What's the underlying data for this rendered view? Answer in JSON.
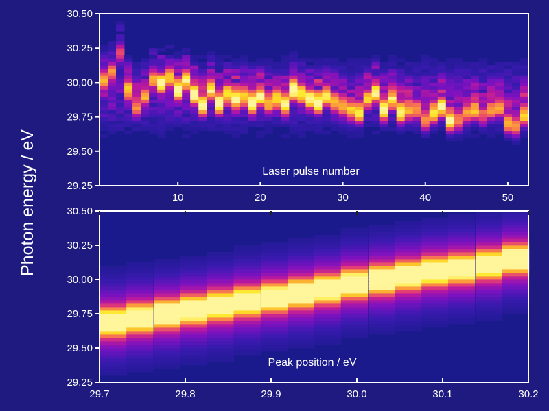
{
  "figure": {
    "ylabel": "Photon energy / eV"
  },
  "colors": {
    "background": "#1e1a80",
    "plot_bg": "#1a1a8c",
    "frame": "#ffffff",
    "text": "#ffffff"
  },
  "colormap": [
    "#1a1a8c",
    "#3a1ab0",
    "#7a12c0",
    "#b8189f",
    "#e43f74",
    "#f9804a",
    "#fcb82e",
    "#fde725",
    "#fff59a"
  ],
  "chart_data": [
    {
      "type": "heatmap",
      "panel": "top",
      "xlabel": "Laser pulse number",
      "x_ticks": [
        10,
        20,
        30,
        40,
        50
      ],
      "x_tick_labels": [
        "10",
        "20",
        "30",
        "40",
        "50"
      ],
      "xlim": [
        0.5,
        52.5
      ],
      "ylim": [
        29.25,
        30.5
      ],
      "y_ticks": [
        29.25,
        29.5,
        29.75,
        30.0,
        30.25,
        30.5
      ],
      "y_tick_labels": [
        "29.25",
        "29.50",
        "29.75",
        "30,00",
        "30.25",
        "30.50"
      ],
      "pulses": [
        1,
        2,
        3,
        4,
        5,
        6,
        7,
        8,
        9,
        10,
        11,
        12,
        13,
        14,
        15,
        16,
        17,
        18,
        19,
        20,
        21,
        22,
        23,
        24,
        25,
        26,
        27,
        28,
        29,
        30,
        31,
        32,
        33,
        34,
        35,
        36,
        37,
        38,
        39,
        40,
        41,
        42,
        43,
        44,
        45,
        46,
        47,
        48,
        49,
        50,
        51,
        52
      ],
      "peak_energy_eV": [
        30.02,
        30.08,
        30.22,
        29.95,
        29.82,
        29.9,
        30.03,
        30.0,
        30.04,
        29.95,
        30.02,
        29.92,
        29.84,
        29.95,
        29.85,
        29.92,
        29.88,
        29.9,
        29.85,
        29.9,
        29.85,
        29.88,
        29.84,
        29.95,
        29.92,
        29.88,
        29.85,
        29.9,
        29.86,
        29.83,
        29.8,
        29.78,
        29.88,
        29.93,
        29.8,
        29.88,
        29.78,
        29.8,
        29.8,
        29.72,
        29.78,
        29.82,
        29.72,
        29.72,
        29.78,
        29.8,
        29.76,
        29.8,
        29.82,
        29.7,
        29.68,
        29.76
      ],
      "peak_intensity": [
        0.6,
        0.55,
        0.5,
        0.65,
        0.45,
        0.5,
        0.55,
        0.85,
        0.7,
        0.95,
        0.8,
        0.9,
        0.85,
        0.75,
        0.9,
        0.7,
        0.8,
        0.65,
        0.95,
        0.75,
        0.6,
        0.7,
        0.85,
        0.9,
        0.75,
        0.8,
        0.9,
        0.7,
        0.55,
        0.6,
        0.65,
        0.8,
        0.6,
        0.75,
        0.85,
        0.7,
        0.8,
        0.6,
        0.5,
        0.55,
        0.75,
        0.8,
        0.9,
        0.55,
        0.5,
        0.6,
        0.45,
        0.5,
        0.55,
        0.65,
        0.6,
        0.7
      ]
    },
    {
      "type": "heatmap",
      "panel": "bottom",
      "xlabel": "Peak position / eV",
      "x_ticks": [
        29.7,
        29.8,
        29.9,
        30.0,
        30.1,
        30.2
      ],
      "x_tick_labels": [
        "29.7",
        "29.8",
        "29.9",
        "30.0",
        "30.1",
        "30.2"
      ],
      "xlim": [
        29.7,
        30.2
      ],
      "ylim": [
        29.25,
        30.5
      ],
      "y_ticks": [
        29.25,
        29.5,
        29.75,
        30.0,
        30.25,
        30.5
      ],
      "y_tick_labels": [
        "29.25",
        "29.50",
        "29.75",
        "30.00",
        "30.25",
        "30.50"
      ],
      "peak_position_eV": [
        29.716,
        29.747,
        29.779,
        29.81,
        29.841,
        29.872,
        29.904,
        29.935,
        29.966,
        29.997,
        30.029,
        30.06,
        30.091,
        30.122,
        30.154,
        30.185
      ],
      "photon_energy_eV": [
        29.69,
        29.72,
        29.75,
        29.78,
        29.81,
        29.84,
        29.87,
        29.9,
        29.93,
        29.97,
        30.0,
        30.03,
        30.06,
        30.08,
        30.11,
        30.15
      ]
    }
  ]
}
